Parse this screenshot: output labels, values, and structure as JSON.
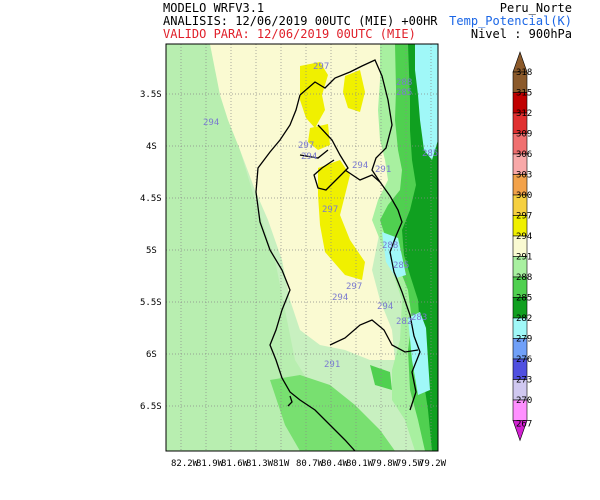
{
  "header": {
    "model": "MODELO WRFV3.1",
    "analysis": "ANALISIS: 12/06/2019 00UTC (MIE) +00HR",
    "valid": "VALIDO PARA: 12/06/2019 00UTC (MIE)",
    "region": "Peru_Norte",
    "variable": "Temp_Potencial(K)",
    "level": "Nivel : 900hPa"
  },
  "map": {
    "lat_ticks": [
      "3.5S",
      "4S",
      "4.5S",
      "5S",
      "5.5S",
      "6S",
      "6.5S"
    ],
    "lon_ticks": [
      "82.2W",
      "81.9W",
      "81.6W",
      "81.3W",
      "81W",
      "80.7W",
      "80.4W",
      "80.1W",
      "79.8W",
      "79.5W",
      "79.2W"
    ],
    "contour_labels": [
      "297",
      "294",
      "297",
      "294",
      "294",
      "291",
      "297",
      "285",
      "288",
      "285",
      "297",
      "294",
      "288",
      "294",
      "282",
      "283",
      "291",
      "285"
    ]
  },
  "colorbar": {
    "levels": [
      "318",
      "315",
      "312",
      "309",
      "306",
      "303",
      "300",
      "297",
      "294",
      "291",
      "288",
      "285",
      "282",
      "279",
      "276",
      "273",
      "270",
      "267"
    ],
    "colors": {
      "318": "#8b5a2b",
      "315": "#c00000",
      "312": "#e03030",
      "309": "#f07070",
      "306": "#f8a8a8",
      "303": "#f2a24a",
      "300": "#f6d040",
      "297": "#f0f000",
      "294": "#fafad2",
      "291": "#a8f0a0",
      "288": "#50d050",
      "285": "#10a020",
      "282": "#a0f8f8",
      "279": "#70a0f8",
      "276": "#5050e0",
      "273": "#d0c8f0",
      "270": "#ff90ff",
      "267": "#d020d0"
    }
  }
}
